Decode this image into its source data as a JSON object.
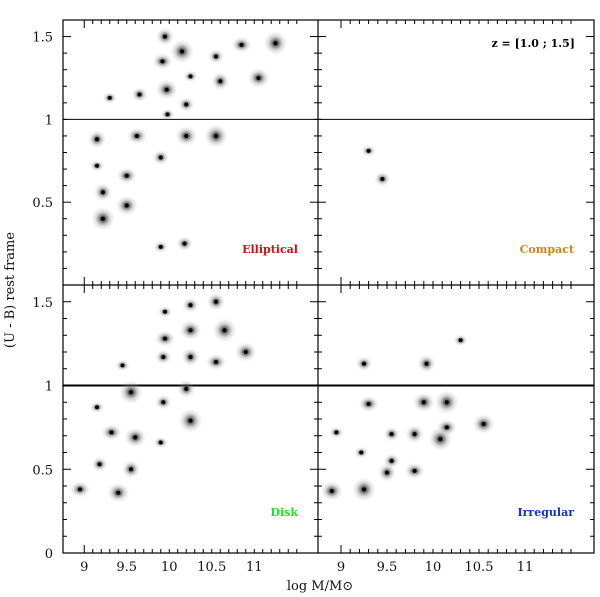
{
  "figure": {
    "xlabel": "log M/M⊙",
    "ylabel": "(U - B) rest frame",
    "redshift_label": "z = [1.0 ; 1.5]"
  },
  "chart_data": {
    "type": "scatter",
    "x_range": [
      8.75,
      11.75
    ],
    "y_range": [
      0,
      1.6
    ],
    "x_ticks": [
      "9",
      "9.5",
      "10",
      "10.5",
      "11"
    ],
    "x_tick_values": [
      9,
      9.5,
      10,
      10.5,
      11
    ],
    "y_ticks": [
      "0",
      "0.5",
      "1",
      "1.5"
    ],
    "y_tick_values": [
      0,
      0.5,
      1,
      1.5
    ],
    "divider_y": 1.0,
    "xlabel": "log M/M⊙",
    "ylabel": "(U - B) rest frame",
    "annotation": "z = [1.0 ; 1.5]",
    "panels": [
      {
        "name": "Elliptical",
        "label_color": "#cc1111",
        "points": [
          {
            "x": 9.3,
            "y": 1.13
          },
          {
            "x": 9.65,
            "y": 1.15
          },
          {
            "x": 9.95,
            "y": 1.5
          },
          {
            "x": 9.92,
            "y": 1.35
          },
          {
            "x": 9.97,
            "y": 1.18
          },
          {
            "x": 10.15,
            "y": 1.41
          },
          {
            "x": 10.25,
            "y": 1.26
          },
          {
            "x": 10.55,
            "y": 1.38
          },
          {
            "x": 10.6,
            "y": 1.23
          },
          {
            "x": 10.85,
            "y": 1.45
          },
          {
            "x": 11.05,
            "y": 1.25
          },
          {
            "x": 11.25,
            "y": 1.46
          },
          {
            "x": 9.98,
            "y": 1.03
          },
          {
            "x": 10.2,
            "y": 1.09
          },
          {
            "x": 9.15,
            "y": 0.88
          },
          {
            "x": 9.62,
            "y": 0.9
          },
          {
            "x": 10.2,
            "y": 0.9
          },
          {
            "x": 10.55,
            "y": 0.9
          },
          {
            "x": 9.15,
            "y": 0.72
          },
          {
            "x": 9.9,
            "y": 0.77
          },
          {
            "x": 9.22,
            "y": 0.56
          },
          {
            "x": 9.5,
            "y": 0.66
          },
          {
            "x": 9.5,
            "y": 0.48
          },
          {
            "x": 9.22,
            "y": 0.4
          },
          {
            "x": 9.9,
            "y": 0.23
          },
          {
            "x": 10.18,
            "y": 0.25
          }
        ]
      },
      {
        "name": "Compact",
        "label_color": "#c8861a",
        "points": [
          {
            "x": 9.3,
            "y": 0.81
          },
          {
            "x": 9.45,
            "y": 0.64
          }
        ]
      },
      {
        "name": "Disk",
        "label_color": "#22dd22",
        "points": [
          {
            "x": 9.95,
            "y": 1.44
          },
          {
            "x": 10.25,
            "y": 1.48
          },
          {
            "x": 10.55,
            "y": 1.5
          },
          {
            "x": 9.95,
            "y": 1.28
          },
          {
            "x": 10.25,
            "y": 1.33
          },
          {
            "x": 10.65,
            "y": 1.33
          },
          {
            "x": 9.45,
            "y": 1.12
          },
          {
            "x": 9.93,
            "y": 1.17
          },
          {
            "x": 10.25,
            "y": 1.17
          },
          {
            "x": 10.55,
            "y": 1.14
          },
          {
            "x": 10.9,
            "y": 1.2
          },
          {
            "x": 9.55,
            "y": 0.96
          },
          {
            "x": 9.15,
            "y": 0.87
          },
          {
            "x": 9.93,
            "y": 0.9
          },
          {
            "x": 10.2,
            "y": 0.98
          },
          {
            "x": 9.32,
            "y": 0.72
          },
          {
            "x": 9.6,
            "y": 0.69
          },
          {
            "x": 10.25,
            "y": 0.79
          },
          {
            "x": 9.9,
            "y": 0.66
          },
          {
            "x": 9.18,
            "y": 0.53
          },
          {
            "x": 9.55,
            "y": 0.5
          },
          {
            "x": 8.95,
            "y": 0.38
          },
          {
            "x": 9.4,
            "y": 0.36
          }
        ]
      },
      {
        "name": "Irregular",
        "label_color": "#1133cc",
        "points": [
          {
            "x": 10.3,
            "y": 1.27
          },
          {
            "x": 9.25,
            "y": 1.13
          },
          {
            "x": 9.93,
            "y": 1.13
          },
          {
            "x": 9.3,
            "y": 0.89
          },
          {
            "x": 9.9,
            "y": 0.9
          },
          {
            "x": 10.15,
            "y": 0.9
          },
          {
            "x": 8.95,
            "y": 0.72
          },
          {
            "x": 9.55,
            "y": 0.71
          },
          {
            "x": 9.8,
            "y": 0.71
          },
          {
            "x": 10.15,
            "y": 0.75
          },
          {
            "x": 10.55,
            "y": 0.77
          },
          {
            "x": 10.08,
            "y": 0.68
          },
          {
            "x": 9.22,
            "y": 0.6
          },
          {
            "x": 9.55,
            "y": 0.55
          },
          {
            "x": 9.5,
            "y": 0.48
          },
          {
            "x": 9.8,
            "y": 0.49
          },
          {
            "x": 8.9,
            "y": 0.37
          },
          {
            "x": 9.25,
            "y": 0.38
          }
        ]
      }
    ]
  }
}
